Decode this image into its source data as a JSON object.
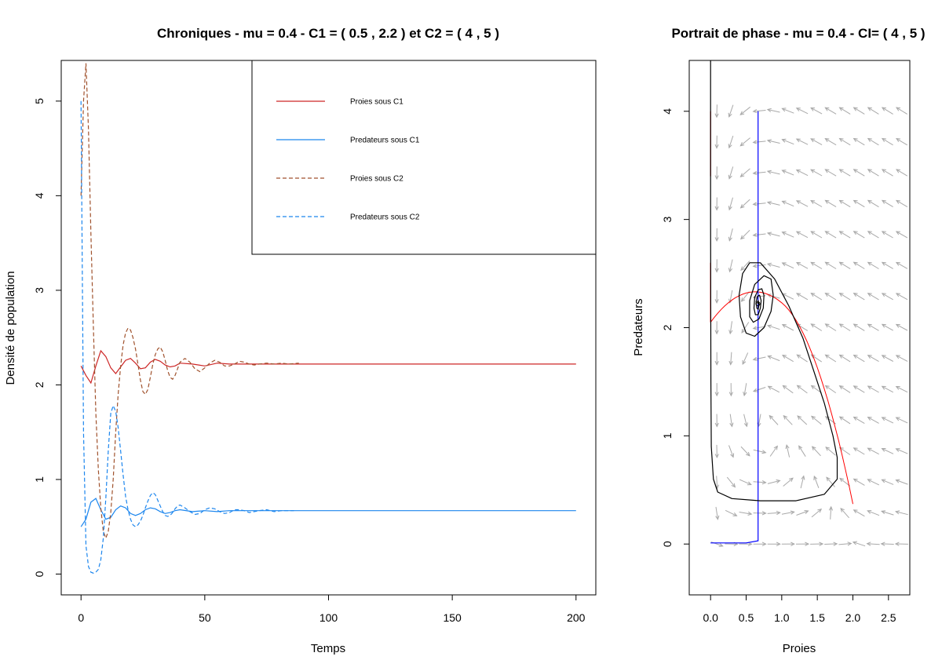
{
  "colors": {
    "prey_c1": "#CD2626",
    "pred_c1": "#1C86EE",
    "prey_c2": "#A0522D",
    "pred_c2": "#1C86EE",
    "field": "#A9A9A9",
    "phase_cycle": "#000000",
    "nullcline_prey": "#FF0000",
    "nullcline_pred": "#0000FF"
  },
  "chart_data": [
    {
      "type": "line",
      "title": "Chroniques - mu =  0.4  - C1 = ( 0.5 , 2.2 ) et C2 = ( 4 , 5 )",
      "xlabel": "Temps",
      "ylabel": "Densité de population",
      "xlim": [
        -8,
        208
      ],
      "ylim": [
        -0.22,
        5.43
      ],
      "x_ticks": [
        "0",
        "50",
        "100",
        "150",
        "200"
      ],
      "y_ticks": [
        "0",
        "1",
        "2",
        "3",
        "4",
        "5"
      ],
      "legend_position": "top-right",
      "legend": [
        {
          "label": "Proies sous C1",
          "style": "solid",
          "color_key": "prey_c1"
        },
        {
          "label": "Predateurs sous C1",
          "style": "solid",
          "color_key": "pred_c1"
        },
        {
          "label": "Proies sous C2",
          "style": "dashed",
          "color_key": "prey_c2"
        },
        {
          "label": "Predateurs sous C2",
          "style": "dashed",
          "color_key": "pred_c2"
        }
      ],
      "series": [
        {
          "name": "Proies sous C1",
          "x": [
            0,
            2,
            4,
            6,
            8,
            10,
            12,
            14,
            16,
            18,
            20,
            22,
            24,
            26,
            28,
            30,
            32,
            34,
            36,
            38,
            40,
            45,
            50,
            55,
            60,
            70,
            80,
            90,
            100,
            150,
            200
          ],
          "y": [
            2.2,
            2.1,
            2.02,
            2.2,
            2.36,
            2.3,
            2.18,
            2.12,
            2.19,
            2.26,
            2.28,
            2.23,
            2.17,
            2.18,
            2.24,
            2.27,
            2.25,
            2.21,
            2.19,
            2.2,
            2.23,
            2.22,
            2.2,
            2.23,
            2.22,
            2.22,
            2.22,
            2.22,
            2.22,
            2.22,
            2.22
          ]
        },
        {
          "name": "Predateurs sous C1",
          "x": [
            0,
            2,
            4,
            6,
            8,
            10,
            12,
            14,
            16,
            18,
            20,
            22,
            24,
            26,
            28,
            30,
            32,
            34,
            36,
            38,
            40,
            45,
            50,
            55,
            60,
            70,
            80,
            90,
            100,
            150,
            200
          ],
          "y": [
            0.5,
            0.58,
            0.76,
            0.8,
            0.68,
            0.58,
            0.6,
            0.68,
            0.72,
            0.7,
            0.64,
            0.62,
            0.64,
            0.68,
            0.7,
            0.69,
            0.66,
            0.64,
            0.65,
            0.67,
            0.68,
            0.66,
            0.67,
            0.66,
            0.67,
            0.67,
            0.67,
            0.67,
            0.67,
            0.67,
            0.67
          ]
        },
        {
          "name": "Proies sous C2",
          "x": [
            0,
            1,
            2,
            3,
            4,
            5,
            6,
            7,
            8,
            9,
            10,
            11,
            12,
            13,
            14,
            15,
            16,
            17,
            18,
            19,
            20,
            21,
            22,
            23,
            24,
            25,
            26,
            27,
            28,
            29,
            30,
            31,
            32,
            33,
            34,
            35,
            36,
            37,
            38,
            39,
            40,
            42,
            44,
            46,
            48,
            50,
            52,
            54,
            56,
            58,
            60,
            62,
            64,
            66,
            68,
            70,
            72,
            75,
            78,
            81,
            84,
            88
          ],
          "y": [
            4.0,
            5.0,
            5.4,
            4.7,
            3.6,
            2.6,
            1.7,
            1.1,
            0.7,
            0.45,
            0.38,
            0.45,
            0.65,
            1.0,
            1.5,
            1.9,
            2.2,
            2.42,
            2.55,
            2.6,
            2.58,
            2.5,
            2.38,
            2.22,
            2.05,
            1.93,
            1.9,
            1.95,
            2.08,
            2.22,
            2.32,
            2.38,
            2.4,
            2.35,
            2.26,
            2.15,
            2.08,
            2.06,
            2.1,
            2.17,
            2.24,
            2.28,
            2.24,
            2.17,
            2.14,
            2.18,
            2.23,
            2.26,
            2.24,
            2.2,
            2.2,
            2.22,
            2.25,
            2.24,
            2.22,
            2.21,
            2.22,
            2.23,
            2.22,
            2.23,
            2.22,
            2.23
          ]
        },
        {
          "name": "Predateurs sous C2",
          "x": [
            0,
            1,
            2,
            3,
            4,
            5,
            6,
            7,
            8,
            9,
            10,
            11,
            12,
            13,
            14,
            15,
            16,
            17,
            18,
            19,
            20,
            21,
            22,
            23,
            24,
            25,
            26,
            27,
            28,
            29,
            30,
            31,
            32,
            33,
            34,
            35,
            36,
            37,
            38,
            39,
            40,
            42,
            44,
            46,
            48,
            50,
            52,
            54,
            56,
            58,
            60,
            62,
            64,
            66,
            68,
            70,
            72,
            75,
            78,
            81,
            84,
            86
          ],
          "y": [
            5.0,
            1.5,
            0.3,
            0.08,
            0.02,
            0.01,
            0.02,
            0.05,
            0.15,
            0.38,
            0.8,
            1.3,
            1.7,
            1.78,
            1.72,
            1.55,
            1.3,
            1.05,
            0.82,
            0.68,
            0.58,
            0.52,
            0.5,
            0.52,
            0.56,
            0.62,
            0.7,
            0.77,
            0.83,
            0.86,
            0.84,
            0.78,
            0.72,
            0.66,
            0.62,
            0.61,
            0.62,
            0.65,
            0.69,
            0.72,
            0.73,
            0.7,
            0.66,
            0.63,
            0.64,
            0.68,
            0.7,
            0.69,
            0.66,
            0.64,
            0.65,
            0.68,
            0.68,
            0.67,
            0.65,
            0.66,
            0.67,
            0.68,
            0.66,
            0.67,
            0.67,
            0.67
          ]
        }
      ]
    },
    {
      "type": "line",
      "title": "Portrait de phase - mu =  0.4  - CI= ( 4 , 5 )",
      "xlabel": "Proies",
      "ylabel": "Predateurs",
      "xlim": [
        -0.3,
        2.8
      ],
      "ylim": [
        -0.47,
        4.47
      ],
      "x_ticks": [
        "0.0",
        "0.5",
        "1.0",
        "1.5",
        "2.0",
        "2.5"
      ],
      "y_ticks": [
        "0",
        "1",
        "2",
        "3",
        "4"
      ],
      "series": [
        {
          "x": [
            0.0,
            0.0,
            0.005,
            0.01,
            0.04,
            0.1,
            0.3,
            0.7,
            1.2,
            1.6,
            1.78,
            1.78,
            1.72,
            1.6,
            1.45,
            1.3,
            1.1,
            0.9,
            0.7,
            0.55,
            0.45,
            0.4,
            0.42,
            0.5,
            0.62,
            0.75,
            0.85,
            0.88,
            0.85,
            0.75,
            0.62,
            0.55,
            0.55,
            0.6,
            0.68,
            0.74,
            0.75,
            0.72,
            0.67,
            0.62,
            0.61,
            0.63,
            0.67,
            0.7,
            0.71,
            0.69,
            0.66,
            0.64,
            0.65,
            0.67,
            0.68,
            0.67,
            0.66,
            0.665
          ],
          "y": [
            4.5,
            3.0,
            1.5,
            0.9,
            0.6,
            0.48,
            0.42,
            0.4,
            0.4,
            0.46,
            0.6,
            0.8,
            1.0,
            1.3,
            1.6,
            1.9,
            2.2,
            2.45,
            2.6,
            2.6,
            2.5,
            2.3,
            2.1,
            1.95,
            1.92,
            2.0,
            2.15,
            2.3,
            2.45,
            2.48,
            2.4,
            2.25,
            2.1,
            2.05,
            2.08,
            2.18,
            2.3,
            2.36,
            2.35,
            2.28,
            2.18,
            2.12,
            2.12,
            2.18,
            2.25,
            2.3,
            2.29,
            2.24,
            2.18,
            2.17,
            2.21,
            2.25,
            2.24,
            2.22
          ]
        }
      ]
    }
  ]
}
